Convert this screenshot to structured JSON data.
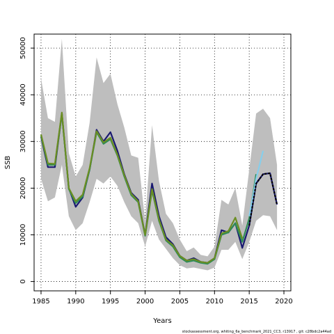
{
  "chart_data": {
    "type": "line",
    "xlabel": "Years",
    "ylabel": "SSB",
    "xlim": [
      1984,
      2021
    ],
    "ylim": [
      -2000,
      53000
    ],
    "xticks": [
      1985,
      1990,
      1995,
      2000,
      2005,
      2010,
      2015,
      2020
    ],
    "yticks": [
      0,
      10000,
      20000,
      30000,
      40000,
      50000
    ],
    "grid": true,
    "footnote": "stockassessment.org,  whiting_6a_benchmark_2021_CC3,  r13917 ,  git:  c28bdc2a44ad",
    "confidence_band": {
      "color": "#bebebe",
      "x": [
        1985,
        1986,
        1987,
        1988,
        1989,
        1990,
        1991,
        1992,
        1993,
        1994,
        1995,
        1996,
        1997,
        1998,
        1999,
        2000,
        2001,
        2002,
        2003,
        2004,
        2005,
        2006,
        2007,
        2008,
        2009,
        2010,
        2011,
        2012,
        2013,
        2014,
        2015,
        2016,
        2017,
        2018,
        2019
      ],
      "upper": [
        43500,
        35000,
        34200,
        52000,
        27500,
        22500,
        25000,
        34000,
        48000,
        42500,
        44500,
        38000,
        33000,
        27000,
        26500,
        13000,
        33500,
        21500,
        14500,
        12500,
        9000,
        6500,
        7300,
        5700,
        5400,
        7500,
        17500,
        16500,
        20000,
        12000,
        24000,
        36000,
        37000,
        35000,
        25000
      ],
      "lower": [
        22000,
        17200,
        18000,
        25000,
        14000,
        11000,
        12500,
        17000,
        22000,
        21000,
        22500,
        20500,
        17000,
        14000,
        12500,
        7500,
        13000,
        9000,
        7000,
        5000,
        3500,
        2800,
        3000,
        2700,
        2400,
        3000,
        6800,
        6800,
        8500,
        4800,
        8500,
        13000,
        14200,
        14000,
        11000
      ]
    },
    "series": [
      {
        "color": "#191970",
        "x": [
          1985,
          1986,
          1987,
          1988,
          1989,
          1990,
          1991,
          1992,
          1993,
          1994,
          1995,
          1996,
          1997,
          1998,
          1999,
          2000,
          2001,
          2002,
          2003,
          2004,
          2005,
          2006,
          2007,
          2008,
          2009,
          2010,
          2011,
          2012,
          2013,
          2014,
          2015,
          2016,
          2017,
          2018,
          2019
        ],
        "values": [
          31000,
          24500,
          24500,
          36000,
          20000,
          16000,
          18000,
          24000,
          32500,
          30000,
          32000,
          28000,
          23000,
          19000,
          17500,
          10000,
          21000,
          14000,
          9500,
          8000,
          5500,
          4500,
          5000,
          4200,
          4000,
          5000,
          11000,
          10500,
          12500,
          7200,
          12000,
          21000,
          23000,
          23200,
          16500
        ]
      },
      {
        "color": "#2e8b57",
        "x": [
          1985,
          1986,
          1987,
          1988,
          1989,
          1990,
          1991,
          1992,
          1993,
          1994,
          1995,
          1996,
          1997,
          1998,
          1999,
          2000,
          2001,
          2002,
          2003,
          2004,
          2005,
          2006,
          2007,
          2008,
          2009,
          2010,
          2011,
          2012,
          2013,
          2014,
          2015,
          2016
        ],
        "values": [
          31200,
          25000,
          25000,
          36000,
          19800,
          16800,
          18200,
          24000,
          32000,
          29500,
          30500,
          27000,
          22500,
          18500,
          17000,
          9800,
          19500,
          13000,
          8800,
          7500,
          5200,
          4200,
          4500,
          4000,
          3800,
          4800,
          10000,
          10500,
          12500,
          8500,
          13500,
          23000
        ]
      },
      {
        "color": "#87ceeb",
        "x": [
          2015,
          2016,
          2017
        ],
        "values": [
          14000,
          22000,
          28000
        ]
      },
      {
        "color": "#6b8e23",
        "x": [
          1985,
          1986,
          1987,
          1988,
          1989,
          1990,
          1991,
          1992,
          1993,
          1994,
          1995,
          1996,
          1997,
          1998,
          1999,
          2000,
          2001,
          2002,
          2003,
          2004,
          2005,
          2006,
          2007,
          2008,
          2009,
          2010,
          2011,
          2012,
          2013,
          2014
        ],
        "values": [
          31500,
          25300,
          25200,
          36200,
          20000,
          17200,
          18600,
          24300,
          32200,
          29800,
          30800,
          27200,
          22800,
          18800,
          17200,
          10000,
          19800,
          13300,
          9000,
          7800,
          5500,
          4500,
          4800,
          4200,
          4000,
          5000,
          10300,
          10800,
          13700,
          9200
        ]
      },
      {
        "color": "#000000",
        "dashed": true,
        "x": [
          2015,
          2016,
          2017,
          2018,
          2019
        ],
        "values": [
          12000,
          21000,
          23000,
          23200,
          16500
        ]
      }
    ]
  }
}
